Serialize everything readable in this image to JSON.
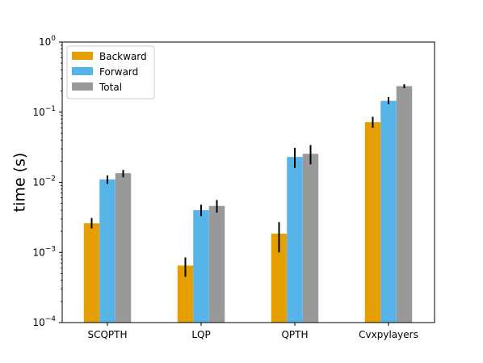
{
  "chart_data": {
    "type": "bar",
    "y_scale": "log",
    "ylim": [
      0.0001,
      1
    ],
    "ylabel": "time (s)",
    "xlabel": "",
    "title": "",
    "categories": [
      "SCQPTH",
      "LQP",
      "QPTH",
      "Cvxpylayers"
    ],
    "y_ticks": [
      {
        "value": 0.0001,
        "base": "10",
        "exp": "−4"
      },
      {
        "value": 0.001,
        "base": "10",
        "exp": "−3"
      },
      {
        "value": 0.01,
        "base": "10",
        "exp": "−2"
      },
      {
        "value": 0.1,
        "base": "10",
        "exp": "−1"
      },
      {
        "value": 1,
        "base": "10",
        "exp": "0"
      }
    ],
    "series": [
      {
        "name": "Backward",
        "color": "#E69F00",
        "values": [
          0.0026,
          0.00065,
          0.00185,
          0.072
        ],
        "err_low": [
          0.0022,
          0.00045,
          0.001,
          0.06
        ],
        "err_high": [
          0.0031,
          0.00085,
          0.0027,
          0.086
        ]
      },
      {
        "name": "Forward",
        "color": "#56B4E9",
        "values": [
          0.011,
          0.004,
          0.023,
          0.145
        ],
        "err_low": [
          0.0095,
          0.0033,
          0.016,
          0.13
        ],
        "err_high": [
          0.0125,
          0.0048,
          0.031,
          0.165
        ]
      },
      {
        "name": "Total",
        "color": "#999999",
        "values": [
          0.0135,
          0.0046,
          0.0255,
          0.235
        ],
        "err_low": [
          0.0118,
          0.0037,
          0.018,
          0.22
        ],
        "err_high": [
          0.015,
          0.0056,
          0.034,
          0.25
        ]
      }
    ],
    "legend_position": "top-left",
    "grid": false
  }
}
